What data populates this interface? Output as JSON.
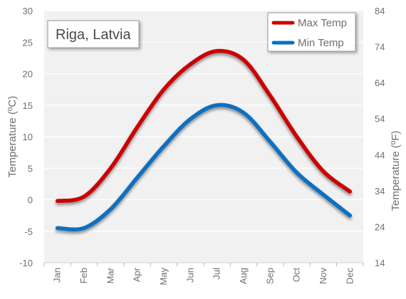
{
  "chart_data": {
    "type": "line",
    "title": "Riga, Latvia",
    "categories": [
      "Jan",
      "Feb",
      "Mar",
      "Apr",
      "May",
      "Jun",
      "Jul",
      "Aug",
      "Sep",
      "Oct",
      "Nov",
      "Dec"
    ],
    "ylabel_left": "Temperature (ºC)",
    "ylabel_right": "Temperature (ºF)",
    "ylim_left": [
      -10,
      30
    ],
    "yticks_left": [
      -10,
      -5,
      0,
      5,
      10,
      15,
      20,
      25,
      30
    ],
    "ylim_right": [
      14,
      84
    ],
    "yticks_right": [
      14,
      24,
      34,
      44,
      54,
      64,
      74,
      84
    ],
    "grid": true,
    "legend_position": "top-right",
    "series": [
      {
        "name": "Max Temp",
        "color": "#cc0000",
        "values": [
          -0.2,
          0.5,
          5.0,
          11.5,
          17.5,
          21.5,
          23.6,
          22.2,
          16.5,
          10.0,
          4.5,
          1.3
        ]
      },
      {
        "name": "Min Temp",
        "color": "#0a6fc2",
        "values": [
          -4.5,
          -4.5,
          -1.5,
          3.5,
          8.5,
          12.8,
          15.0,
          13.8,
          9.2,
          4.3,
          0.8,
          -2.5
        ]
      }
    ]
  }
}
